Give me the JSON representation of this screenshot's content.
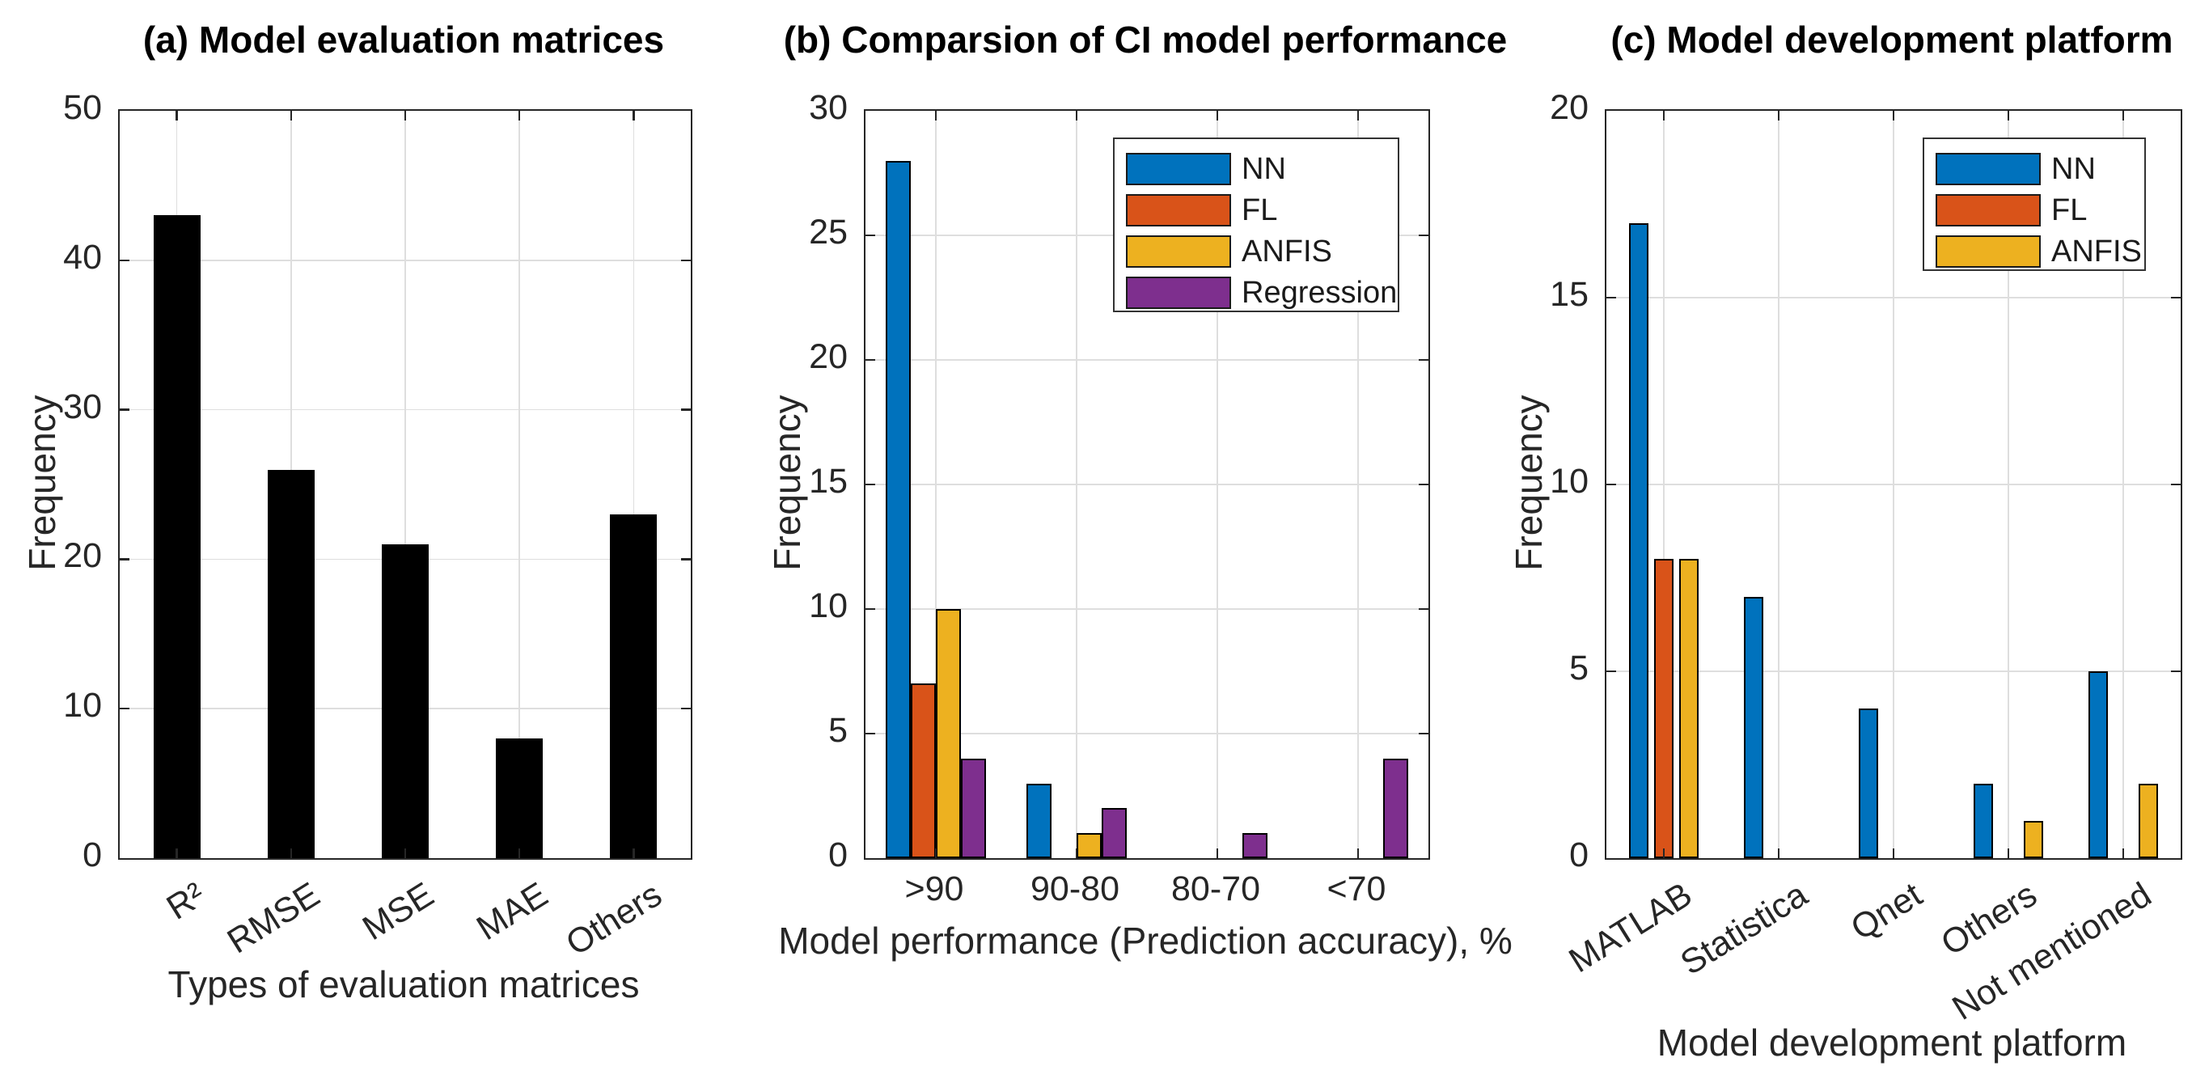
{
  "figure": {
    "background": "#ffffff",
    "axis_color": "#262626",
    "grid_color": "#dedede"
  },
  "chart_data": [
    {
      "type": "bar",
      "panel": "a",
      "title": "(a) Model evaluation matrices",
      "categories": [
        "R²",
        "RMSE",
        "MSE",
        "MAE",
        "Others"
      ],
      "values": [
        43,
        26,
        21,
        8,
        23
      ],
      "bar_color": "#000000",
      "xlabel": "Types of evaluation matrices",
      "ylabel": "Frequency",
      "ylim": [
        0,
        50
      ],
      "yticks": [
        0,
        10,
        20,
        30,
        40,
        50
      ],
      "grid": true,
      "legend": false,
      "xtick_rotation_deg": -32
    },
    {
      "type": "bar",
      "panel": "b",
      "title": "(b) Comparsion of CI model performance",
      "categories": [
        ">90",
        "90-80",
        "80-70",
        "<70"
      ],
      "series": [
        {
          "name": "NN",
          "color": "#0072BD",
          "values": [
            28,
            3,
            0,
            0
          ]
        },
        {
          "name": "FL",
          "color": "#D95319",
          "values": [
            7,
            0,
            0,
            0
          ]
        },
        {
          "name": "ANFIS",
          "color": "#EDB120",
          "values": [
            10,
            1,
            0,
            0
          ]
        },
        {
          "name": "Regression",
          "color": "#7E2F8E",
          "values": [
            4,
            2,
            1,
            4
          ]
        }
      ],
      "xlabel": "Model performance (Prediction accuracy), %",
      "ylabel": "Frequency",
      "ylim": [
        0,
        30
      ],
      "yticks": [
        0,
        5,
        10,
        15,
        20,
        25,
        30
      ],
      "grid": true,
      "legend": true,
      "legend_position": "top-right",
      "xtick_rotation_deg": 0
    },
    {
      "type": "bar",
      "panel": "c",
      "title": "(c) Model development platform",
      "categories": [
        "MATLAB",
        "Statistica",
        "Qnet",
        "Others",
        "Not mentioned"
      ],
      "series": [
        {
          "name": "NN",
          "color": "#0072BD",
          "values": [
            17,
            7,
            4,
            2,
            5
          ]
        },
        {
          "name": "FL",
          "color": "#D95319",
          "values": [
            8,
            0,
            0,
            0,
            0
          ]
        },
        {
          "name": "ANFIS",
          "color": "#EDB120",
          "values": [
            8,
            0,
            0,
            1,
            2
          ]
        }
      ],
      "xlabel": "Model development platform",
      "ylabel": "Frequency",
      "ylim": [
        0,
        20
      ],
      "yticks": [
        0,
        5,
        10,
        15,
        20
      ],
      "grid": true,
      "legend": true,
      "legend_position": "top-right",
      "xtick_rotation_deg": -32
    }
  ]
}
